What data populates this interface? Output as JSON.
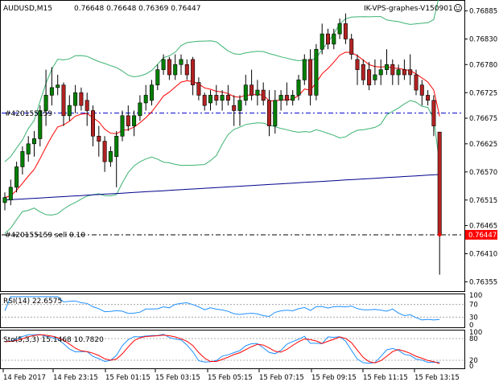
{
  "header": {
    "symbol_tf": "AUDUSD,M15",
    "ohlc": "0.76648 0.76648 0.76369 0.76447",
    "ea_label": "IK-VPS-graphes-V150901",
    "ea_icon": "smiley-icon"
  },
  "orders": [
    {
      "label": "#420155159",
      "price": 0.76685,
      "style": "blue-dashdot"
    },
    {
      "label": "#420155159 sell 0.10",
      "price": 0.76447,
      "style": "black-dashdot"
    }
  ],
  "price_axis": {
    "ticks": [
      "0.76885",
      "0.76830",
      "0.76780",
      "0.76725",
      "0.76675",
      "0.76625",
      "0.76570",
      "0.76515",
      "0.76465",
      "0.76410",
      "0.76355"
    ],
    "current_price": "0.76447",
    "current_color": "#ff0000"
  },
  "time_axis": {
    "ticks": [
      "14 Feb 2017",
      "14 Feb 23:15",
      "15 Feb 01:15",
      "15 Feb 03:15",
      "15 Feb 05:15",
      "15 Feb 07:15",
      "15 Feb 09:15",
      "15 Feb 11:15",
      "15 Feb 13:15"
    ]
  },
  "rsi": {
    "label": "RSI(14) 22.6575",
    "levels": [
      "100",
      "70",
      "30",
      "0"
    ],
    "color": "#1e90ff"
  },
  "stoch": {
    "label": "Sto(5,3,3) 15.1468 10.7820",
    "levels": [
      "100",
      "80",
      "20",
      "0"
    ],
    "main_color": "#1e90ff",
    "signal_color": "#ff0000"
  },
  "colors": {
    "bull": "#008000",
    "bear": "#b22222",
    "bands": "#3cb371",
    "ma_fast": "#ff0000",
    "ma_slow": "#00008b"
  },
  "chart_data": {
    "type": "candlestick",
    "ylim": [
      0.7634,
      0.769
    ],
    "candles": [
      [
        0.7651,
        0.7653,
        0.76495,
        0.7652
      ],
      [
        0.76515,
        0.76555,
        0.76505,
        0.7654
      ],
      [
        0.7654,
        0.7659,
        0.7653,
        0.7658
      ],
      [
        0.7658,
        0.7662,
        0.76565,
        0.7661
      ],
      [
        0.76605,
        0.7664,
        0.7659,
        0.76625
      ],
      [
        0.76625,
        0.7665,
        0.766,
        0.76635
      ],
      [
        0.76635,
        0.767,
        0.7662,
        0.7669
      ],
      [
        0.7669,
        0.7677,
        0.7666,
        0.7672
      ],
      [
        0.7672,
        0.76775,
        0.767,
        0.76735
      ],
      [
        0.76735,
        0.7676,
        0.7672,
        0.7674
      ],
      [
        0.7674,
        0.76745,
        0.7666,
        0.7668
      ],
      [
        0.7668,
        0.7672,
        0.7667,
        0.767
      ],
      [
        0.767,
        0.7674,
        0.76685,
        0.76725
      ],
      [
        0.76725,
        0.76735,
        0.7669,
        0.767
      ],
      [
        0.7671,
        0.76725,
        0.7666,
        0.7669
      ],
      [
        0.7669,
        0.767,
        0.7662,
        0.7664
      ],
      [
        0.7664,
        0.7666,
        0.766,
        0.7663
      ],
      [
        0.7663,
        0.7664,
        0.7657,
        0.7659
      ],
      [
        0.7659,
        0.7662,
        0.7658,
        0.7661
      ],
      [
        0.766,
        0.7665,
        0.7654,
        0.7664
      ],
      [
        0.7664,
        0.7669,
        0.7663,
        0.7668
      ],
      [
        0.7668,
        0.767,
        0.7665,
        0.7666
      ],
      [
        0.7666,
        0.7669,
        0.7664,
        0.7668
      ],
      [
        0.7668,
        0.7672,
        0.7667,
        0.76705
      ],
      [
        0.76705,
        0.7674,
        0.7669,
        0.7672
      ],
      [
        0.7671,
        0.7675,
        0.767,
        0.7674
      ],
      [
        0.7674,
        0.7678,
        0.7673,
        0.7677
      ],
      [
        0.7677,
        0.768,
        0.7676,
        0.7679
      ],
      [
        0.7679,
        0.76795,
        0.7675,
        0.7676
      ],
      [
        0.7676,
        0.768,
        0.7675,
        0.7678
      ],
      [
        0.7678,
        0.768,
        0.7676,
        0.7679
      ],
      [
        0.7678,
        0.7679,
        0.7675,
        0.7676
      ],
      [
        0.7679,
        0.76795,
        0.7672,
        0.7674
      ],
      [
        0.76745,
        0.76755,
        0.7671,
        0.7672
      ],
      [
        0.7672,
        0.76725,
        0.7669,
        0.767
      ],
      [
        0.76705,
        0.7673,
        0.7669,
        0.7672
      ],
      [
        0.7672,
        0.7674,
        0.767,
        0.7671
      ],
      [
        0.7671,
        0.7673,
        0.7669,
        0.7672
      ],
      [
        0.7672,
        0.7674,
        0.767,
        0.7671
      ],
      [
        0.767,
        0.7672,
        0.7666,
        0.7669
      ],
      [
        0.7669,
        0.7672,
        0.7666,
        0.7671
      ],
      [
        0.7671,
        0.7676,
        0.767,
        0.7674
      ],
      [
        0.7674,
        0.7677,
        0.7671,
        0.7672
      ],
      [
        0.7672,
        0.7675,
        0.767,
        0.7673
      ],
      [
        0.7673,
        0.76745,
        0.767,
        0.7671
      ],
      [
        0.7671,
        0.7673,
        0.7664,
        0.7666
      ],
      [
        0.7666,
        0.7673,
        0.76645,
        0.7671
      ],
      [
        0.7671,
        0.7673,
        0.7669,
        0.7672
      ],
      [
        0.7672,
        0.76745,
        0.767,
        0.7671
      ],
      [
        0.7671,
        0.7673,
        0.767,
        0.7672
      ],
      [
        0.7672,
        0.7676,
        0.7671,
        0.7675
      ],
      [
        0.7675,
        0.768,
        0.7674,
        0.7679
      ],
      [
        0.7679,
        0.7681,
        0.767,
        0.7672
      ],
      [
        0.7672,
        0.7682,
        0.7671,
        0.7681
      ],
      [
        0.7681,
        0.7686,
        0.768,
        0.7684
      ],
      [
        0.7684,
        0.7685,
        0.7681,
        0.7682
      ],
      [
        0.7682,
        0.7685,
        0.7681,
        0.7684
      ],
      [
        0.7684,
        0.7687,
        0.7683,
        0.7686
      ],
      [
        0.7686,
        0.7688,
        0.7682,
        0.7683
      ],
      [
        0.7683,
        0.7684,
        0.7679,
        0.768
      ],
      [
        0.7679,
        0.768,
        0.7674,
        0.7677
      ],
      [
        0.7678,
        0.7679,
        0.7674,
        0.7675
      ],
      [
        0.7677,
        0.76785,
        0.7673,
        0.7674
      ],
      [
        0.7675,
        0.7679,
        0.7674,
        0.7676
      ],
      [
        0.7676,
        0.7679,
        0.7674,
        0.7677
      ],
      [
        0.7677,
        0.7681,
        0.7676,
        0.7678
      ],
      [
        0.7678,
        0.7679,
        0.7674,
        0.7676
      ],
      [
        0.7676,
        0.7678,
        0.7674,
        0.7677
      ],
      [
        0.7677,
        0.7679,
        0.7675,
        0.7676
      ],
      [
        0.7677,
        0.768,
        0.7674,
        0.7676
      ],
      [
        0.7676,
        0.7677,
        0.7672,
        0.7673
      ],
      [
        0.7674,
        0.7675,
        0.767,
        0.7672
      ],
      [
        0.7672,
        0.7673,
        0.767,
        0.7671
      ],
      [
        0.7671,
        0.7672,
        0.7664,
        0.7666
      ],
      [
        0.76648,
        0.76648,
        0.76369,
        0.76447
      ]
    ],
    "x_labels": [
      "14 Feb 2017",
      "14 Feb 23:15",
      "15 Feb 01:15",
      "15 Feb 03:15",
      "15 Feb 05:15",
      "15 Feb 07:15",
      "15 Feb 09:15",
      "15 Feb 11:15",
      "15 Feb 13:15"
    ]
  }
}
